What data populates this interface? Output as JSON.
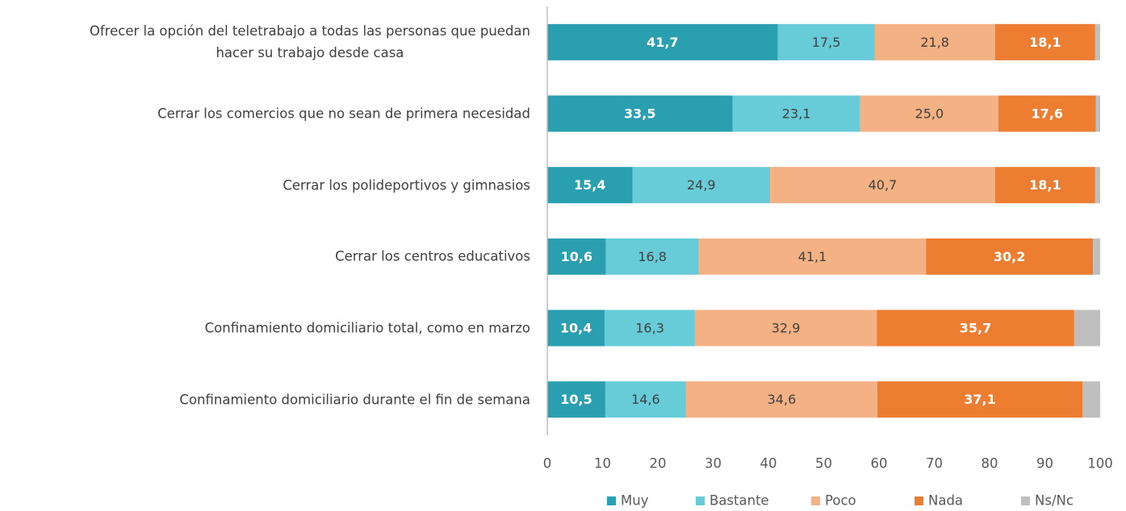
{
  "chart_data": {
    "type": "bar",
    "orientation": "horizontal",
    "stacked": true,
    "categories": [
      "Ofrecer la opción del teletrabajo a todas las personas que puedan\nhacer su trabajo desde casa",
      "Cerrar los comercios que no sean de primera necesidad",
      "Cerrar los polideportivos y gimnasios",
      "Cerrar los centros educativos",
      "Confinamiento domiciliario total, como en marzo",
      "Confinamiento domiciliario durante el fin de semana"
    ],
    "series": [
      {
        "name": "Muy",
        "color": "#2a9fb0",
        "values": [
          41.7,
          33.5,
          15.4,
          10.6,
          10.4,
          10.5
        ],
        "value_labels": [
          "41,7",
          "33,5",
          "15,4",
          "10,6",
          "10,4",
          "10,5"
        ]
      },
      {
        "name": "Bastante",
        "color": "#67cbd8",
        "values": [
          17.5,
          23.1,
          24.9,
          16.8,
          16.3,
          14.6
        ],
        "value_labels": [
          "17,5",
          "23,1",
          "24,9",
          "16,8",
          "16,3",
          "14,6"
        ]
      },
      {
        "name": "Poco",
        "color": "#f4b183",
        "values": [
          21.8,
          25.0,
          40.7,
          41.1,
          32.9,
          34.6
        ],
        "value_labels": [
          "21,8",
          "25,0",
          "40,7",
          "41,1",
          "32,9",
          "34,6"
        ]
      },
      {
        "name": "Nada",
        "color": "#ed7d31",
        "values": [
          18.1,
          17.6,
          18.1,
          30.2,
          35.7,
          37.1
        ],
        "value_labels": [
          "18,1",
          "17,6",
          "18,1",
          "30,2",
          "35,7",
          "37,1"
        ]
      },
      {
        "name": "Ns/Nc",
        "color": "#bfbfbf",
        "values": [
          0.9,
          0.8,
          0.9,
          1.3,
          4.7,
          3.2
        ]
      }
    ],
    "xlim": [
      0,
      100
    ],
    "xticks": [
      0,
      10,
      20,
      30,
      40,
      50,
      60,
      70,
      80,
      90,
      100
    ],
    "legend": "bottom"
  }
}
